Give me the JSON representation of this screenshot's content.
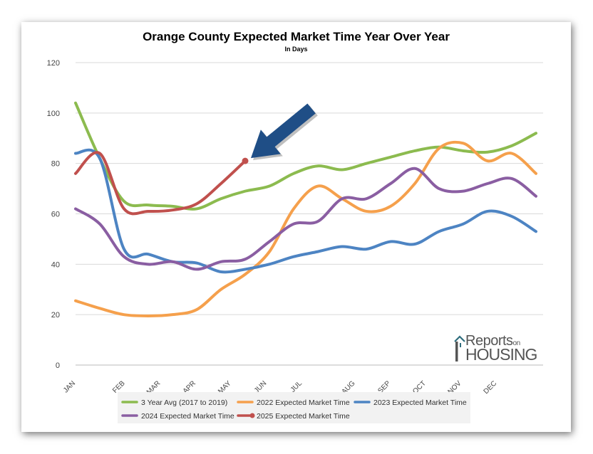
{
  "chart_data": {
    "type": "line",
    "title": "Orange County Expected Market Time Year Over Year",
    "subtitle": "In Days",
    "categories": [
      "JAN",
      "FEB",
      "MAR",
      "APR",
      "MAY",
      "JUN",
      "JUL",
      "AUG",
      "SEP",
      "OCT",
      "NOV",
      "DEC"
    ],
    "ylim": [
      0,
      120
    ],
    "yticks": [
      0,
      20,
      40,
      60,
      80,
      100,
      120
    ],
    "grid": true,
    "legend_position": "bottom",
    "series": [
      {
        "name": "3 Year Avg (2017 to 2019)",
        "color": "#8cbb4f",
        "marker_last": false,
        "points": [
          [
            0,
            104
          ],
          [
            0.5,
            82
          ],
          [
            1,
            65
          ],
          [
            1.5,
            63.5
          ],
          [
            2,
            63
          ],
          [
            2.5,
            62
          ],
          [
            3,
            66
          ],
          [
            3.5,
            69
          ],
          [
            4,
            71
          ],
          [
            4.5,
            76
          ],
          [
            5,
            79
          ],
          [
            5.5,
            77.5
          ],
          [
            6,
            80
          ],
          [
            6.5,
            82.5
          ],
          [
            7,
            85
          ],
          [
            7.5,
            86.5
          ],
          [
            8,
            85
          ],
          [
            8.5,
            84.5
          ],
          [
            9,
            87
          ],
          [
            9.5,
            92
          ]
        ]
      },
      {
        "name": "2022 Expected Market Time",
        "color": "#f5a04c",
        "marker_last": false,
        "points": [
          [
            0,
            25.5
          ],
          [
            0.5,
            22.5
          ],
          [
            1,
            20
          ],
          [
            1.5,
            19.5
          ],
          [
            2,
            20
          ],
          [
            2.5,
            22
          ],
          [
            3,
            30
          ],
          [
            3.5,
            36
          ],
          [
            4,
            45
          ],
          [
            4.5,
            62
          ],
          [
            5,
            71
          ],
          [
            5.5,
            66
          ],
          [
            6,
            61
          ],
          [
            6.5,
            63
          ],
          [
            7,
            72
          ],
          [
            7.5,
            86
          ],
          [
            8,
            88
          ],
          [
            8.5,
            81
          ],
          [
            9,
            84
          ],
          [
            9.5,
            76
          ]
        ]
      },
      {
        "name": "2023 Expected Market Time",
        "color": "#4d84c3",
        "marker_last": false,
        "points": [
          [
            0,
            84
          ],
          [
            0.5,
            82
          ],
          [
            1,
            46
          ],
          [
            1.5,
            44
          ],
          [
            2,
            41
          ],
          [
            2.5,
            40.5
          ],
          [
            3,
            37
          ],
          [
            3.5,
            38
          ],
          [
            4,
            40
          ],
          [
            4.5,
            43
          ],
          [
            5,
            45
          ],
          [
            5.5,
            47
          ],
          [
            6,
            46
          ],
          [
            6.5,
            49
          ],
          [
            7,
            48
          ],
          [
            7.5,
            53
          ],
          [
            8,
            56
          ],
          [
            8.5,
            61
          ],
          [
            9,
            59
          ],
          [
            9.5,
            53
          ]
        ]
      },
      {
        "name": "2024 Expected Market Time",
        "color": "#8a5ea2",
        "marker_last": false,
        "points": [
          [
            0,
            62
          ],
          [
            0.5,
            56
          ],
          [
            1,
            43
          ],
          [
            1.5,
            40
          ],
          [
            2,
            41
          ],
          [
            2.5,
            38
          ],
          [
            3,
            41
          ],
          [
            3.5,
            42
          ],
          [
            4,
            49
          ],
          [
            4.5,
            56
          ],
          [
            5,
            57
          ],
          [
            5.5,
            66
          ],
          [
            6,
            66
          ],
          [
            6.5,
            72
          ],
          [
            7,
            78
          ],
          [
            7.5,
            70
          ],
          [
            8,
            69
          ],
          [
            8.5,
            72
          ],
          [
            9,
            74
          ],
          [
            9.5,
            67
          ]
        ]
      },
      {
        "name": "2025 Expected Market Time",
        "color": "#c0504d",
        "marker_last": true,
        "points": [
          [
            0,
            76
          ],
          [
            0.5,
            84
          ],
          [
            1,
            62
          ],
          [
            1.5,
            61
          ],
          [
            2,
            61.5
          ],
          [
            2.5,
            64
          ],
          [
            3,
            72
          ],
          [
            3.5,
            81
          ]
        ]
      }
    ]
  },
  "logo": {
    "brand_top": "Reports",
    "brand_on": "on",
    "brand_bottom": "HOUSING",
    "icon": "house-r-logo-icon"
  },
  "annotation": {
    "icon": "arrow-pointer-icon",
    "color": "#1f4e86"
  }
}
